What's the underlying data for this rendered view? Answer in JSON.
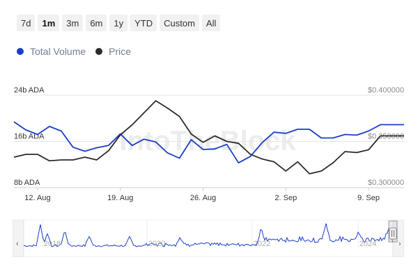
{
  "range_selector": {
    "buttons": [
      {
        "label": "7d",
        "active": false
      },
      {
        "label": "1m",
        "active": true
      },
      {
        "label": "3m",
        "active": false
      },
      {
        "label": "6m",
        "active": false
      },
      {
        "label": "1y",
        "active": false
      },
      {
        "label": "YTD",
        "active": false
      },
      {
        "label": "Custom",
        "active": false
      },
      {
        "label": "All",
        "active": false
      }
    ]
  },
  "legend": {
    "items": [
      {
        "label": "Total Volume",
        "color": "#1a3cc8"
      },
      {
        "label": "Price",
        "color": "#2b2b2b"
      }
    ]
  },
  "watermark": "IntoTheBlock",
  "chart_data": {
    "type": "line",
    "x_ticks": [
      "12. Aug",
      "19. Aug",
      "26. Aug",
      "2. Sep",
      "9. Sep"
    ],
    "left_axis": {
      "unit": "b ADA",
      "ticks": [
        "24b ADA",
        "16b ADA",
        "8b ADA"
      ],
      "range": [
        8,
        24
      ]
    },
    "right_axis": {
      "ticks": [
        "$0.400000",
        "$0.350000",
        "$0.300000"
      ],
      "range": [
        0.3,
        0.4
      ]
    },
    "series": [
      {
        "name": "Total Volume",
        "axis": "left",
        "color": "#1a3cc8",
        "x": [
          "Aug 10",
          "Aug 11",
          "Aug 12",
          "Aug 13",
          "Aug 14",
          "Aug 15",
          "Aug 16",
          "Aug 17",
          "Aug 18",
          "Aug 19",
          "Aug 20",
          "Aug 21",
          "Aug 22",
          "Aug 23",
          "Aug 24",
          "Aug 25",
          "Aug 26",
          "Aug 27",
          "Aug 28",
          "Aug 29",
          "Aug 30",
          "Aug 31",
          "Sep 1",
          "Sep 2",
          "Sep 3",
          "Sep 4",
          "Sep 5",
          "Sep 6",
          "Sep 7",
          "Sep 8",
          "Sep 9",
          "Sep 10",
          "Sep 11",
          "Sep 12"
        ],
        "values": [
          19.4,
          18.0,
          17.2,
          18.6,
          17.8,
          15.0,
          14.3,
          14.9,
          15.3,
          17.3,
          15.3,
          16.4,
          15.9,
          14.0,
          13.1,
          16.3,
          14.6,
          14.7,
          15.5,
          12.3,
          13.4,
          15.8,
          17.6,
          17.4,
          18.1,
          18.1,
          16.6,
          16.6,
          17.2,
          17.1,
          17.8,
          18.9,
          18.9,
          18.9
        ]
      },
      {
        "name": "Price",
        "axis": "right",
        "color": "#2b2b2b",
        "x": [
          "Aug 10",
          "Aug 11",
          "Aug 12",
          "Aug 13",
          "Aug 14",
          "Aug 15",
          "Aug 16",
          "Aug 17",
          "Aug 18",
          "Aug 19",
          "Aug 20",
          "Aug 21",
          "Aug 22",
          "Aug 23",
          "Aug 24",
          "Aug 25",
          "Aug 26",
          "Aug 27",
          "Aug 28",
          "Aug 29",
          "Aug 30",
          "Aug 31",
          "Sep 1",
          "Sep 2",
          "Sep 3",
          "Sep 4",
          "Sep 5",
          "Sep 6",
          "Sep 7",
          "Sep 8",
          "Sep 9",
          "Sep 10",
          "Sep 11",
          "Sep 12"
        ],
        "values": [
          0.333,
          0.336,
          0.336,
          0.329,
          0.33,
          0.33,
          0.333,
          0.33,
          0.34,
          0.357,
          0.368,
          0.381,
          0.394,
          0.386,
          0.377,
          0.358,
          0.349,
          0.356,
          0.35,
          0.348,
          0.336,
          0.331,
          0.328,
          0.318,
          0.328,
          0.315,
          0.318,
          0.327,
          0.339,
          0.338,
          0.341,
          0.356,
          0.356,
          0.356
        ]
      }
    ]
  },
  "navigator": {
    "year_labels": [
      "2018",
      "2020",
      "2022",
      "2024"
    ]
  }
}
